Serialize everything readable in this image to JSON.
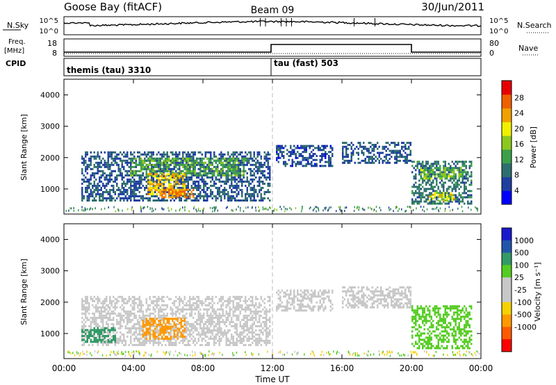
{
  "header": {
    "station": "Goose Bay (fitACF)",
    "beam": "Beam 09",
    "date": "30/Jun/2011"
  },
  "noise_panel": {
    "left_label": "N.Sky",
    "right_label": "N.Search",
    "ticks": [
      "10^5",
      "10^0"
    ],
    "right_ticks": [
      "10^5",
      "10^0"
    ]
  },
  "freq_panel": {
    "left_label_1": "Freq.",
    "left_label_2": "[MHz]",
    "left_ticks": [
      "18",
      "8"
    ],
    "right_label": "Nave",
    "right_ticks": [
      "80",
      "0"
    ]
  },
  "cpid_panel": {
    "label": "CPID",
    "modes": [
      {
        "name": "themis (tau) 3310",
        "start_hour": 0
      },
      {
        "name": "tau (fast) 503",
        "start_hour": 12
      }
    ]
  },
  "colors": {
    "power": [
      "#0000ff",
      "#1f3fa0",
      "#2e6e6e",
      "#3ca04a",
      "#8cc81e",
      "#f0f000",
      "#f0a000",
      "#f06000",
      "#e80000"
    ],
    "velocity": [
      "#ff0000",
      "#ff5a00",
      "#ff9900",
      "#f5d200",
      "#c8c8c8",
      "#c8c8c8",
      "#55cc22",
      "#339966",
      "#2255aa",
      "#1a1acc"
    ]
  },
  "chart_data": [
    {
      "type": "heatmap",
      "name": "power",
      "ylabel": "Slant Range [km]",
      "yticks": [
        "1000",
        "2000",
        "3000",
        "4000"
      ],
      "ylim": [
        200,
        4500
      ],
      "xlim": [
        0,
        24
      ],
      "xticks": [
        "00:00",
        "04:00",
        "08:00",
        "12:00",
        "16:00",
        "20:00",
        "00:00"
      ],
      "colorbar_label": "Power [dB]",
      "colorbar_ticks": [
        "4",
        "8",
        "12",
        "16",
        "20",
        "24",
        "28"
      ],
      "blobs": [
        {
          "t0": 1.0,
          "t1": 11.9,
          "r0": 600,
          "r1": 2200,
          "v": 7
        },
        {
          "t0": 3.8,
          "t1": 10.5,
          "r0": 1400,
          "r1": 2000,
          "v": 13
        },
        {
          "t0": 4.8,
          "t1": 7.0,
          "r0": 800,
          "r1": 1500,
          "v": 22
        },
        {
          "t0": 5.5,
          "t1": 7.5,
          "r0": 700,
          "r1": 1000,
          "v": 25
        },
        {
          "t0": 12.2,
          "t1": 15.5,
          "r0": 1700,
          "r1": 2400,
          "v": 6
        },
        {
          "t0": 16.0,
          "t1": 20.0,
          "r0": 1800,
          "r1": 2500,
          "v": 7
        },
        {
          "t0": 20.0,
          "t1": 23.5,
          "r0": 500,
          "r1": 1900,
          "v": 9
        },
        {
          "t0": 20.5,
          "t1": 23.0,
          "r0": 1300,
          "r1": 1700,
          "v": 15
        },
        {
          "t0": 21.0,
          "t1": 22.5,
          "r0": 600,
          "r1": 900,
          "v": 20
        }
      ]
    },
    {
      "type": "heatmap",
      "name": "velocity",
      "ylabel": "Slant Range [km]",
      "yticks": [
        "1000",
        "2000",
        "3000",
        "4000"
      ],
      "ylim": [
        200,
        4500
      ],
      "xlim": [
        0,
        24
      ],
      "xticks": [
        "00:00",
        "04:00",
        "08:00",
        "12:00",
        "16:00",
        "20:00",
        "00:00"
      ],
      "xlabel": "Time UT",
      "colorbar_label": "Velocity [m s⁻¹]",
      "colorbar_ticks": [
        "1000",
        "500",
        "100",
        "25",
        "-25",
        "-100",
        "-500",
        "-1000"
      ],
      "blobs": [
        {
          "t0": 1.0,
          "t1": 11.9,
          "r0": 600,
          "r1": 2200,
          "v": 0
        },
        {
          "t0": 4.5,
          "t1": 7.0,
          "r0": 800,
          "r1": 1500,
          "v": -300
        },
        {
          "t0": 12.2,
          "t1": 15.5,
          "r0": 1700,
          "r1": 2400,
          "v": 0
        },
        {
          "t0": 16.0,
          "t1": 20.0,
          "r0": 1800,
          "r1": 2500,
          "v": 0
        },
        {
          "t0": 20.0,
          "t1": 23.5,
          "r0": 500,
          "r1": 1900,
          "v": 50
        },
        {
          "t0": 1.0,
          "t1": 3.0,
          "r0": 700,
          "r1": 1200,
          "v": 150
        }
      ]
    }
  ]
}
